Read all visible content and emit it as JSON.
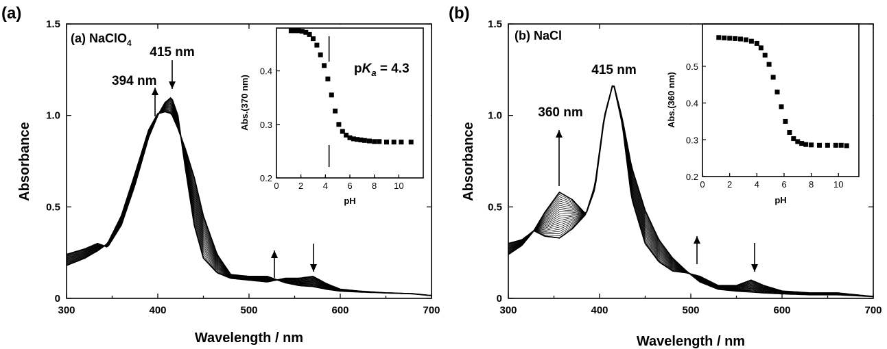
{
  "chart_data": [
    {
      "panel": "(a)",
      "type": "line",
      "title": "(a) NaClO4",
      "title_prefix": "(a) NaClO",
      "title_sub": "4",
      "xlabel": "Wavelength / nm",
      "ylabel": "Absorbance",
      "xlim": [
        300,
        700
      ],
      "ylim": [
        0,
        1.5
      ],
      "xticks": [
        "300",
        "400",
        "500",
        "600",
        "700"
      ],
      "yticks": [
        "0",
        "0.5",
        "1.0",
        "1.5"
      ],
      "grid": false,
      "n_spectra": 22,
      "initial_spectrum": {
        "x": [
          300,
          320,
          334,
          345,
          360,
          375,
          390,
          400,
          408,
          415,
          422,
          430,
          440,
          450,
          465,
          480,
          500,
          520,
          540,
          555,
          570,
          585,
          600,
          620,
          650,
          680,
          700
        ],
        "y": [
          0.24,
          0.27,
          0.3,
          0.28,
          0.4,
          0.62,
          0.88,
          1.0,
          1.07,
          1.1,
          1.0,
          0.72,
          0.4,
          0.22,
          0.14,
          0.11,
          0.1,
          0.09,
          0.11,
          0.11,
          0.12,
          0.08,
          0.05,
          0.04,
          0.03,
          0.025,
          0.015
        ]
      },
      "final_spectrum": {
        "x": [
          300,
          320,
          334,
          345,
          360,
          375,
          390,
          400,
          408,
          415,
          422,
          430,
          440,
          450,
          465,
          480,
          500,
          520,
          540,
          555,
          570,
          585,
          600,
          620,
          650,
          680,
          700
        ],
        "y": [
          0.18,
          0.22,
          0.26,
          0.3,
          0.45,
          0.68,
          0.92,
          1.01,
          1.02,
          1.01,
          0.93,
          0.82,
          0.66,
          0.45,
          0.24,
          0.13,
          0.12,
          0.12,
          0.085,
          0.07,
          0.065,
          0.05,
          0.04,
          0.035,
          0.03,
          0.025,
          0.015
        ]
      },
      "annotations": [
        {
          "text": "415 nm",
          "direction": "down",
          "x": 415
        },
        {
          "text": "394 nm",
          "direction": "up",
          "x": 394
        },
        {
          "text": "",
          "direction": "up",
          "x": 528
        },
        {
          "text": "",
          "direction": "down",
          "x": 570
        }
      ],
      "inset": {
        "type": "scatter",
        "xlabel": "pH",
        "ylabel": "Abs.(370 nm)",
        "xlim": [
          0,
          12
        ],
        "ylim": [
          0.2,
          0.48
        ],
        "xticks": [
          "0",
          "2",
          "4",
          "6",
          "8",
          "10"
        ],
        "yticks": [
          "0.2",
          "0.3",
          "0.4"
        ],
        "pka_label": "pK",
        "pka_sub": "a",
        "pka_value_text": " = 4.3",
        "pka": 4.3,
        "x": [
          1.2,
          1.5,
          1.8,
          2.1,
          2.4,
          2.7,
          3.0,
          3.3,
          3.6,
          3.9,
          4.2,
          4.5,
          4.8,
          5.1,
          5.4,
          5.7,
          6.0,
          6.3,
          6.6,
          6.9,
          7.2,
          7.6,
          8.0,
          8.4,
          9.0,
          9.6,
          10.2,
          11.0
        ],
        "y": [
          0.475,
          0.475,
          0.475,
          0.474,
          0.472,
          0.468,
          0.46,
          0.448,
          0.43,
          0.41,
          0.385,
          0.355,
          0.325,
          0.3,
          0.287,
          0.28,
          0.275,
          0.273,
          0.272,
          0.271,
          0.27,
          0.269,
          0.268,
          0.268,
          0.267,
          0.267,
          0.267,
          0.267
        ]
      }
    },
    {
      "panel": "(b)",
      "type": "line",
      "title": "(b) NaCl",
      "xlabel": "Wavelength / nm",
      "ylabel": "Absorbance",
      "xlim": [
        300,
        700
      ],
      "ylim": [
        0,
        1.5
      ],
      "xticks": [
        "300",
        "400",
        "500",
        "600",
        "700"
      ],
      "yticks": [
        "0",
        "0.5",
        "1.0",
        "1.5"
      ],
      "grid": false,
      "n_spectra": 22,
      "initial_spectrum": {
        "x": [
          300,
          315,
          328,
          340,
          356,
          370,
          385,
          395,
          405,
          415,
          425,
          435,
          450,
          465,
          480,
          495,
          510,
          530,
          550,
          566,
          580,
          600,
          630,
          660,
          680,
          700
        ],
        "y": [
          0.3,
          0.32,
          0.37,
          0.47,
          0.58,
          0.54,
          0.46,
          0.6,
          0.98,
          1.18,
          0.95,
          0.55,
          0.3,
          0.2,
          0.15,
          0.14,
          0.12,
          0.07,
          0.07,
          0.1,
          0.07,
          0.04,
          0.03,
          0.03,
          0.02,
          0.01
        ]
      },
      "final_spectrum": {
        "x": [
          300,
          315,
          328,
          340,
          356,
          370,
          385,
          395,
          405,
          415,
          425,
          435,
          450,
          465,
          480,
          495,
          510,
          530,
          550,
          566,
          580,
          600,
          630,
          660,
          680,
          700
        ],
        "y": [
          0.24,
          0.29,
          0.37,
          0.34,
          0.33,
          0.38,
          0.46,
          0.62,
          0.99,
          1.18,
          0.98,
          0.72,
          0.48,
          0.32,
          0.22,
          0.15,
          0.09,
          0.05,
          0.04,
          0.035,
          0.03,
          0.025,
          0.02,
          0.02,
          0.015,
          0.01
        ]
      },
      "annotations": [
        {
          "text": "415 nm",
          "direction": "none",
          "x": 415
        },
        {
          "text": "360 nm",
          "direction": "up",
          "x": 356
        },
        {
          "text": "",
          "direction": "up",
          "x": 504
        },
        {
          "text": "",
          "direction": "down",
          "x": 566
        }
      ],
      "inset": {
        "type": "scatter",
        "xlabel": "pH",
        "ylabel": "Abs.(360 nm)",
        "xlim": [
          0,
          11.5
        ],
        "ylim": [
          0.2,
          0.6
        ],
        "xticks": [
          "0",
          "2",
          "4",
          "6",
          "8",
          "10"
        ],
        "yticks": [
          "0.2",
          "0.3",
          "0.4",
          "0.5"
        ],
        "x": [
          1.2,
          1.6,
          2.0,
          2.4,
          2.8,
          3.2,
          3.6,
          4.0,
          4.3,
          4.6,
          4.9,
          5.2,
          5.5,
          5.8,
          6.1,
          6.4,
          6.7,
          7.0,
          7.3,
          7.6,
          8.0,
          8.6,
          9.2,
          9.8,
          10.2,
          10.6
        ],
        "y": [
          0.578,
          0.577,
          0.576,
          0.575,
          0.574,
          0.572,
          0.568,
          0.562,
          0.55,
          0.53,
          0.505,
          0.47,
          0.43,
          0.39,
          0.35,
          0.32,
          0.303,
          0.295,
          0.29,
          0.287,
          0.286,
          0.285,
          0.285,
          0.285,
          0.285,
          0.284
        ]
      }
    }
  ],
  "labels": {
    "panel_a": "(a)",
    "panel_b": "(b)"
  }
}
